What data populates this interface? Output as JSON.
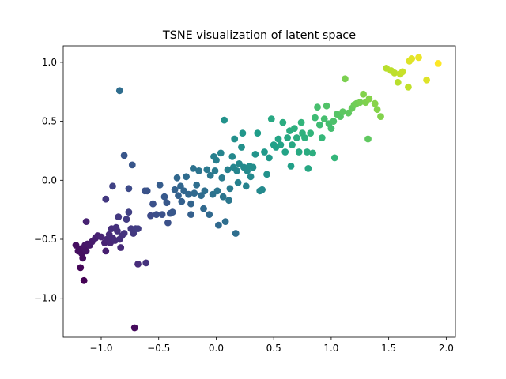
{
  "chart_data": {
    "type": "scatter",
    "title": "TSNE visualization of latent space",
    "xlabel": "",
    "ylabel": "",
    "xlim": [
      -1.33,
      2.08
    ],
    "ylim": [
      -1.33,
      1.14
    ],
    "xticks": [
      -1.0,
      -0.5,
      0.0,
      0.5,
      1.0,
      1.5,
      2.0
    ],
    "yticks": [
      -1.0,
      -0.5,
      0.0,
      0.5,
      1.0
    ],
    "xtick_labels": [
      "−1.0",
      "−0.5",
      "0.0",
      "0.5",
      "1.0",
      "1.5",
      "2.0"
    ],
    "ytick_labels": [
      "−1.0",
      "−0.5",
      "0.0",
      "0.5",
      "1.0"
    ],
    "grid": false,
    "legend": false,
    "colormap": "viridis",
    "marker_color": "color mapped along diagonal (purple low-left to yellow high-right)",
    "points": [
      {
        "x": -1.22,
        "y": -0.55
      },
      {
        "x": -1.2,
        "y": -0.6
      },
      {
        "x": -1.18,
        "y": -0.58
      },
      {
        "x": -1.17,
        "y": -0.62
      },
      {
        "x": -1.15,
        "y": -0.57
      },
      {
        "x": -1.14,
        "y": -0.55
      },
      {
        "x": -1.13,
        "y": -0.6
      },
      {
        "x": -1.12,
        "y": -0.54
      },
      {
        "x": -1.1,
        "y": -0.55
      },
      {
        "x": -1.16,
        "y": -0.66
      },
      {
        "x": -1.18,
        "y": -0.74
      },
      {
        "x": -1.15,
        "y": -0.85
      },
      {
        "x": -1.13,
        "y": -0.35
      },
      {
        "x": -1.08,
        "y": -0.52
      },
      {
        "x": -1.05,
        "y": -0.49
      },
      {
        "x": -1.03,
        "y": -0.47
      },
      {
        "x": -1.0,
        "y": -0.48
      },
      {
        "x": -0.97,
        "y": -0.53
      },
      {
        "x": -0.96,
        "y": -0.6
      },
      {
        "x": -0.95,
        "y": -0.5
      },
      {
        "x": -0.93,
        "y": -0.46
      },
      {
        "x": -0.92,
        "y": -0.53
      },
      {
        "x": -0.91,
        "y": -0.41
      },
      {
        "x": -0.9,
        "y": -0.49
      },
      {
        "x": -0.88,
        "y": -0.51
      },
      {
        "x": -0.87,
        "y": -0.4
      },
      {
        "x": -0.86,
        "y": -0.43
      },
      {
        "x": -0.85,
        "y": -0.31
      },
      {
        "x": -0.84,
        "y": -0.5
      },
      {
        "x": -0.83,
        "y": -0.57
      },
      {
        "x": -0.82,
        "y": -0.47
      },
      {
        "x": -0.8,
        "y": -0.45
      },
      {
        "x": -0.78,
        "y": -0.33
      },
      {
        "x": -0.76,
        "y": -0.27
      },
      {
        "x": -0.74,
        "y": -0.41
      },
      {
        "x": -0.72,
        "y": -0.45
      },
      {
        "x": -0.7,
        "y": -0.41
      },
      {
        "x": -0.68,
        "y": -0.41
      },
      {
        "x": -0.68,
        "y": -0.71
      },
      {
        "x": -0.61,
        "y": -0.7
      },
      {
        "x": -0.71,
        "y": -1.25
      },
      {
        "x": -0.84,
        "y": 0.76
      },
      {
        "x": -0.8,
        "y": 0.21
      },
      {
        "x": -0.73,
        "y": 0.13
      },
      {
        "x": -0.76,
        "y": -0.07
      },
      {
        "x": -0.9,
        "y": -0.05
      },
      {
        "x": -0.96,
        "y": -0.16
      },
      {
        "x": -0.62,
        "y": -0.09
      },
      {
        "x": -0.6,
        "y": -0.09
      },
      {
        "x": -0.57,
        "y": -0.3
      },
      {
        "x": -0.55,
        "y": -0.2
      },
      {
        "x": -0.52,
        "y": -0.29
      },
      {
        "x": -0.49,
        "y": -0.04
      },
      {
        "x": -0.47,
        "y": -0.29
      },
      {
        "x": -0.45,
        "y": -0.14
      },
      {
        "x": -0.43,
        "y": -0.19
      },
      {
        "x": -0.42,
        "y": -0.36
      },
      {
        "x": -0.4,
        "y": -0.28
      },
      {
        "x": -0.38,
        "y": -0.27
      },
      {
        "x": -0.36,
        "y": -0.08
      },
      {
        "x": -0.34,
        "y": 0.02
      },
      {
        "x": -0.33,
        "y": -0.13
      },
      {
        "x": -0.31,
        "y": -0.05
      },
      {
        "x": -0.3,
        "y": -0.18
      },
      {
        "x": -0.28,
        "y": -0.09
      },
      {
        "x": -0.26,
        "y": 0.03
      },
      {
        "x": -0.24,
        "y": -0.12
      },
      {
        "x": -0.22,
        "y": -0.2
      },
      {
        "x": -0.22,
        "y": -0.29
      },
      {
        "x": -0.2,
        "y": 0.1
      },
      {
        "x": -0.19,
        "y": -0.11
      },
      {
        "x": -0.17,
        "y": -0.04
      },
      {
        "x": -0.15,
        "y": 0.08
      },
      {
        "x": -0.13,
        "y": -0.13
      },
      {
        "x": -0.11,
        "y": -0.24
      },
      {
        "x": -0.1,
        "y": -0.09
      },
      {
        "x": -0.08,
        "y": 0.09
      },
      {
        "x": -0.06,
        "y": -0.29
      },
      {
        "x": -0.05,
        "y": 0.04
      },
      {
        "x": -0.03,
        "y": -0.12
      },
      {
        "x": -0.02,
        "y": 0.2
      },
      {
        "x": -0.01,
        "y": 0.08
      },
      {
        "x": 0.0,
        "y": 0.17
      },
      {
        "x": 0.01,
        "y": -0.09
      },
      {
        "x": 0.02,
        "y": -0.38
      },
      {
        "x": 0.04,
        "y": 0.23
      },
      {
        "x": 0.05,
        "y": 0.02
      },
      {
        "x": 0.06,
        "y": -0.14
      },
      {
        "x": 0.07,
        "y": 0.51
      },
      {
        "x": 0.08,
        "y": -0.35
      },
      {
        "x": 0.1,
        "y": 0.09
      },
      {
        "x": 0.11,
        "y": -0.17
      },
      {
        "x": 0.12,
        "y": -0.07
      },
      {
        "x": 0.14,
        "y": 0.2
      },
      {
        "x": 0.15,
        "y": 0.11
      },
      {
        "x": 0.16,
        "y": 0.35
      },
      {
        "x": 0.17,
        "y": -0.45
      },
      {
        "x": 0.18,
        "y": 0.08
      },
      {
        "x": 0.19,
        "y": -0.02
      },
      {
        "x": 0.2,
        "y": 0.14
      },
      {
        "x": 0.22,
        "y": 0.28
      },
      {
        "x": 0.23,
        "y": 0.4
      },
      {
        "x": 0.24,
        "y": 0.11
      },
      {
        "x": 0.26,
        "y": -0.05
      },
      {
        "x": 0.27,
        "y": 0.08
      },
      {
        "x": 0.29,
        "y": 0.12
      },
      {
        "x": 0.3,
        "y": 0.03
      },
      {
        "x": 0.32,
        "y": 0.11
      },
      {
        "x": 0.34,
        "y": 0.22
      },
      {
        "x": 0.36,
        "y": 0.4
      },
      {
        "x": 0.38,
        "y": -0.09
      },
      {
        "x": 0.4,
        "y": -0.08
      },
      {
        "x": 0.42,
        "y": 0.24
      },
      {
        "x": 0.44,
        "y": 0.05
      },
      {
        "x": 0.46,
        "y": 0.19
      },
      {
        "x": 0.48,
        "y": 0.52
      },
      {
        "x": 0.5,
        "y": 0.3
      },
      {
        "x": 0.52,
        "y": 0.28
      },
      {
        "x": 0.54,
        "y": 0.35
      },
      {
        "x": 0.56,
        "y": 0.3
      },
      {
        "x": 0.58,
        "y": 0.49
      },
      {
        "x": 0.6,
        "y": 0.24
      },
      {
        "x": 0.62,
        "y": 0.36
      },
      {
        "x": 0.64,
        "y": 0.42
      },
      {
        "x": 0.65,
        "y": 0.12
      },
      {
        "x": 0.66,
        "y": 0.3
      },
      {
        "x": 0.68,
        "y": 0.44
      },
      {
        "x": 0.7,
        "y": 0.36
      },
      {
        "x": 0.72,
        "y": 0.24
      },
      {
        "x": 0.74,
        "y": 0.49
      },
      {
        "x": 0.75,
        "y": 0.4
      },
      {
        "x": 0.77,
        "y": 0.36
      },
      {
        "x": 0.79,
        "y": 0.24
      },
      {
        "x": 0.8,
        "y": 0.1
      },
      {
        "x": 0.82,
        "y": 0.4
      },
      {
        "x": 0.84,
        "y": 0.23
      },
      {
        "x": 0.86,
        "y": 0.53
      },
      {
        "x": 0.88,
        "y": 0.62
      },
      {
        "x": 0.9,
        "y": 0.47
      },
      {
        "x": 0.92,
        "y": 0.36
      },
      {
        "x": 0.94,
        "y": 0.52
      },
      {
        "x": 0.96,
        "y": 0.63
      },
      {
        "x": 0.98,
        "y": 0.48
      },
      {
        "x": 1.0,
        "y": 0.44
      },
      {
        "x": 1.02,
        "y": 0.5
      },
      {
        "x": 1.03,
        "y": 0.19
      },
      {
        "x": 1.05,
        "y": 0.56
      },
      {
        "x": 1.08,
        "y": 0.54
      },
      {
        "x": 1.1,
        "y": 0.58
      },
      {
        "x": 1.12,
        "y": 0.86
      },
      {
        "x": 1.15,
        "y": 0.57
      },
      {
        "x": 1.18,
        "y": 0.61
      },
      {
        "x": 1.2,
        "y": 0.64
      },
      {
        "x": 1.22,
        "y": 0.65
      },
      {
        "x": 1.25,
        "y": 0.66
      },
      {
        "x": 1.28,
        "y": 0.73
      },
      {
        "x": 1.3,
        "y": 0.66
      },
      {
        "x": 1.32,
        "y": 0.35
      },
      {
        "x": 1.33,
        "y": 0.69
      },
      {
        "x": 1.38,
        "y": 0.65
      },
      {
        "x": 1.4,
        "y": 0.6
      },
      {
        "x": 1.43,
        "y": 0.54
      },
      {
        "x": 1.48,
        "y": 0.95
      },
      {
        "x": 1.52,
        "y": 0.93
      },
      {
        "x": 1.55,
        "y": 0.91
      },
      {
        "x": 1.58,
        "y": 0.83
      },
      {
        "x": 1.6,
        "y": 0.9
      },
      {
        "x": 1.62,
        "y": 0.92
      },
      {
        "x": 1.67,
        "y": 0.79
      },
      {
        "x": 1.68,
        "y": 1.01
      },
      {
        "x": 1.7,
        "y": 1.03
      },
      {
        "x": 1.76,
        "y": 1.04
      },
      {
        "x": 1.83,
        "y": 0.85
      },
      {
        "x": 1.93,
        "y": 0.99
      }
    ]
  }
}
